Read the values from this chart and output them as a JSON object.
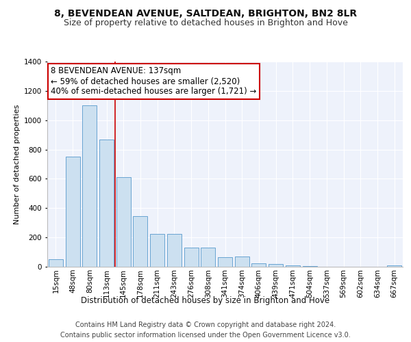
{
  "title1": "8, BEVENDEAN AVENUE, SALTDEAN, BRIGHTON, BN2 8LR",
  "title2": "Size of property relative to detached houses in Brighton and Hove",
  "xlabel": "Distribution of detached houses by size in Brighton and Hove",
  "ylabel": "Number of detached properties",
  "categories": [
    "15sqm",
    "48sqm",
    "80sqm",
    "113sqm",
    "145sqm",
    "178sqm",
    "211sqm",
    "243sqm",
    "276sqm",
    "308sqm",
    "341sqm",
    "374sqm",
    "406sqm",
    "439sqm",
    "471sqm",
    "504sqm",
    "537sqm",
    "569sqm",
    "602sqm",
    "634sqm",
    "667sqm"
  ],
  "values": [
    52,
    750,
    1100,
    870,
    610,
    345,
    225,
    225,
    130,
    130,
    65,
    70,
    25,
    18,
    10,
    5,
    2,
    1,
    0,
    1,
    10
  ],
  "bar_color": "#cce0f0",
  "bar_edge_color": "#5599cc",
  "annotation_text": "8 BEVENDEAN AVENUE: 137sqm\n← 59% of detached houses are smaller (2,520)\n40% of semi-detached houses are larger (1,721) →",
  "annotation_box_color": "#ffffff",
  "annotation_box_edge": "#cc0000",
  "property_line_color": "#cc0000",
  "footnote1": "Contains HM Land Registry data © Crown copyright and database right 2024.",
  "footnote2": "Contains public sector information licensed under the Open Government Licence v3.0.",
  "ylim": [
    0,
    1400
  ],
  "background_color": "#eef2fb",
  "grid_color": "#ffffff",
  "title1_fontsize": 10,
  "title2_fontsize": 9,
  "xlabel_fontsize": 8.5,
  "ylabel_fontsize": 8,
  "tick_fontsize": 7.5,
  "annotation_fontsize": 8.5,
  "footnote_fontsize": 7
}
